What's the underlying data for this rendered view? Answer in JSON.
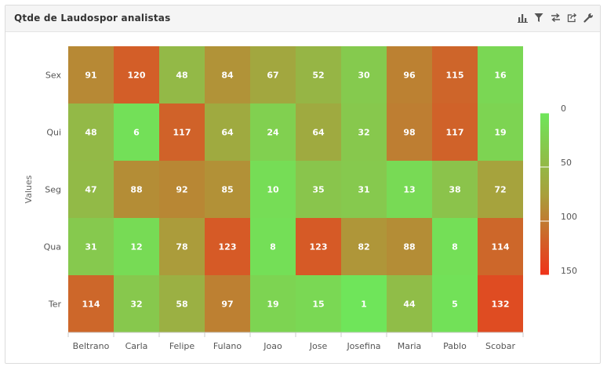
{
  "panel": {
    "title": "Qtde de Laudospor analistas"
  },
  "toolbar": {
    "icons": [
      "bar-chart-icon",
      "filter-icon",
      "swap-icon",
      "export-icon",
      "wrench-icon"
    ]
  },
  "colors": {
    "low": "#6ee65a",
    "mid": "#a8a03c",
    "high": "#f0321a"
  },
  "chart_data": {
    "type": "heatmap",
    "x_categories": [
      "Beltrano",
      "Carla",
      "Felipe",
      "Fulano",
      "Joao",
      "Jose",
      "Josefina",
      "Maria",
      "Pablo",
      "Scobar"
    ],
    "y_categories": [
      "Sex",
      "Qui",
      "Seg",
      "Qua",
      "Ter"
    ],
    "ylabel": "Values",
    "values": [
      [
        91,
        120,
        48,
        84,
        67,
        52,
        30,
        96,
        115,
        16
      ],
      [
        48,
        6,
        117,
        64,
        24,
        64,
        32,
        98,
        117,
        19
      ],
      [
        47,
        88,
        92,
        85,
        10,
        35,
        31,
        13,
        38,
        72
      ],
      [
        31,
        12,
        78,
        123,
        8,
        123,
        82,
        88,
        8,
        114
      ],
      [
        114,
        32,
        58,
        97,
        19,
        15,
        1,
        44,
        5,
        132
      ]
    ],
    "color_scale": {
      "min": 0,
      "max": 150,
      "ticks": [
        0,
        50,
        100,
        150
      ]
    }
  }
}
